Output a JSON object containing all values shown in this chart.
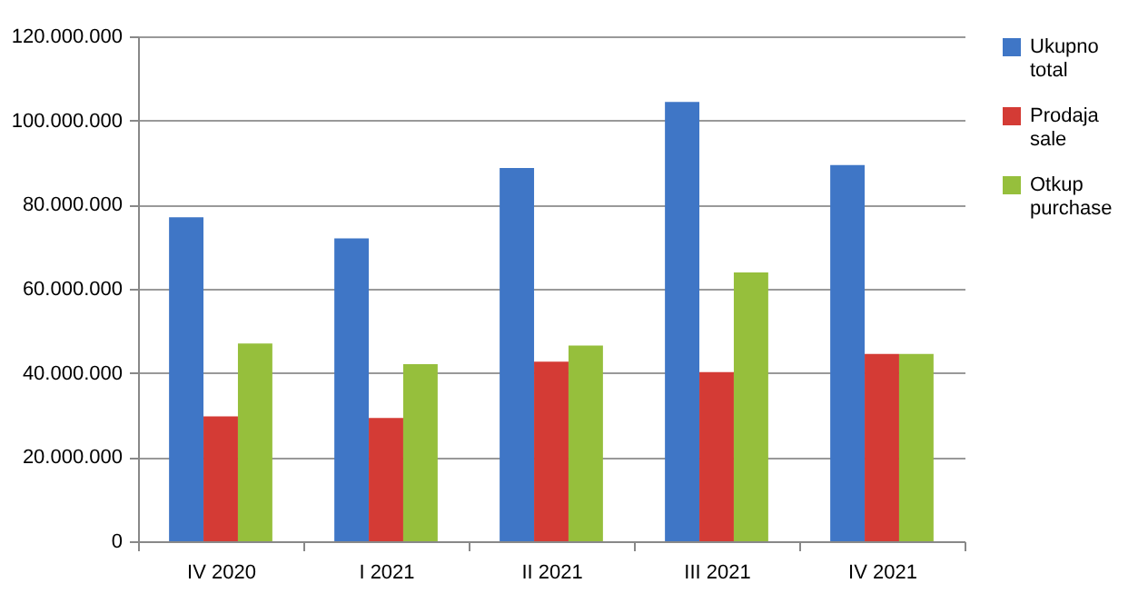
{
  "chart_data": {
    "type": "bar",
    "categories": [
      "IV 2020",
      "I 2021",
      "II 2021",
      "III 2021",
      "IV 2021"
    ],
    "series": [
      {
        "name": "Ukupno total",
        "color": "#3f76c6",
        "values": [
          77000000,
          72000000,
          88700000,
          104400000,
          89400000
        ]
      },
      {
        "name": "Prodaja sale",
        "color": "#d43b35",
        "values": [
          29700000,
          29300000,
          42700000,
          40200000,
          44500000
        ]
      },
      {
        "name": "Otkup purchase",
        "color": "#96bf3c",
        "values": [
          47000000,
          42100000,
          46500000,
          63900000,
          44500000
        ]
      }
    ],
    "ylim": [
      0,
      120000000
    ],
    "yticks": [
      0,
      {
        "value": 20000000,
        "label": "20.000.000"
      },
      {
        "value": 40000000,
        "label": "40.000.000"
      },
      {
        "value": 60000000,
        "label": "60.000.000"
      },
      {
        "value": 80000000,
        "label": "80.000.000"
      },
      {
        "value": 100000000,
        "label": "100.000.000"
      },
      {
        "value": 120000000,
        "label": "120.000.000"
      }
    ],
    "grid": "y",
    "legend": "right"
  }
}
